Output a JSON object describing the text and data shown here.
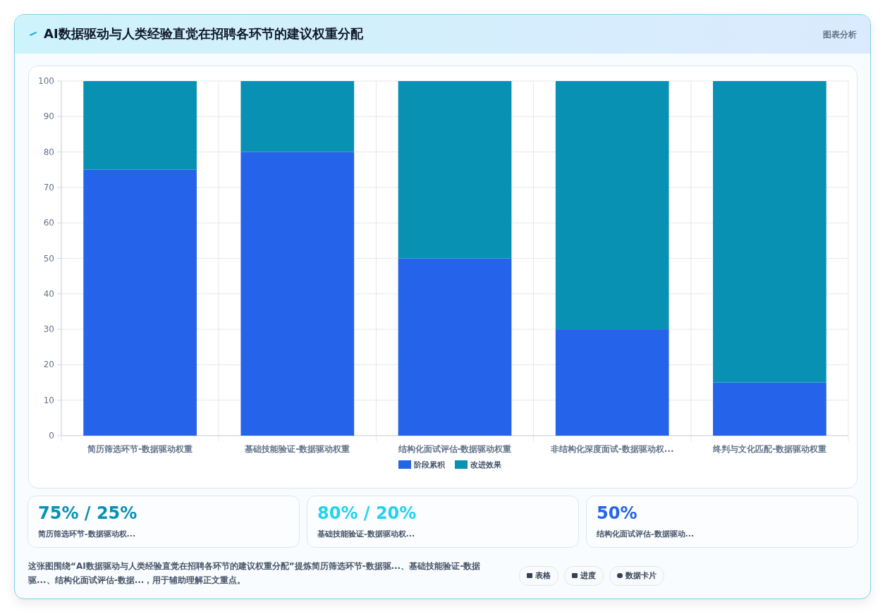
{
  "chart_data": {
    "type": "bar",
    "title": "AI数据驱动与人类经验直觉在招聘各环节的建议权重分配",
    "stacked": true,
    "categories": [
      "简历筛选环节-数据驱动权重",
      "基础技能验证-数据驱动权重",
      "结构化面试评估-数据驱动权重",
      "非结构化深度面试-数据驱动权...",
      "终判与文化匹配-数据驱动权重"
    ],
    "series": [
      {
        "name": "阶段累积",
        "color": "#2563eb",
        "values": [
          75,
          80,
          50,
          30,
          15
        ]
      },
      {
        "name": "改进效果",
        "color": "#0891b2",
        "values": [
          25,
          20,
          50,
          70,
          85
        ]
      }
    ],
    "ylim": [
      0,
      100
    ],
    "yticks": [
      0,
      10,
      20,
      30,
      40,
      50,
      60,
      70,
      80,
      90,
      100
    ],
    "grid": true,
    "legend": "bottom",
    "annotations": [
      "图表分析",
      "75% / 25%",
      "简历筛选环节-数据驱动权...",
      "80% / 20%",
      "基础技能验证-数据驱动权...",
      "50%",
      "结构化面试评估-数据驱动...",
      "这张图围绕“AI数据驱动与人类经验直觉在招聘各环节的建议权重分配”提炼简历筛选环节-数据驱...、基础技能验证-数据驱...、结构化面试评估-数据...，用于辅助理解正文重点。",
      "表格",
      "进度",
      "数据卡片"
    ]
  }
}
